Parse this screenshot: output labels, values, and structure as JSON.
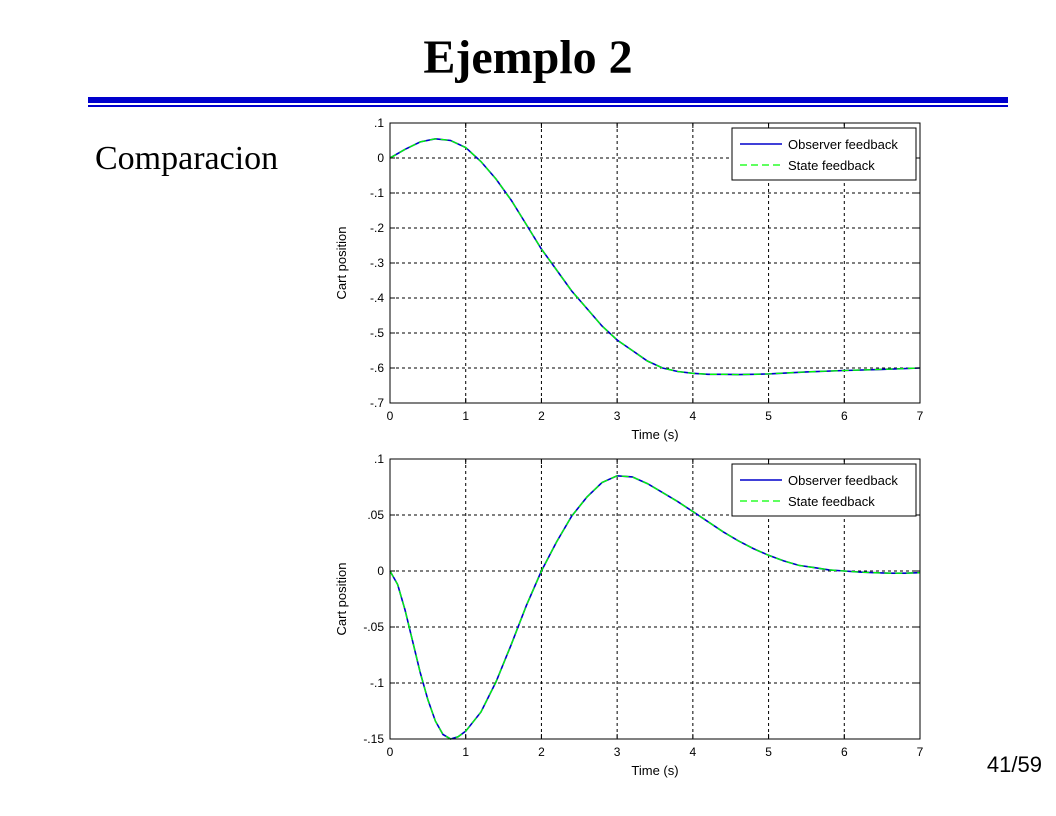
{
  "slide": {
    "title": "Ejemplo 2",
    "subtitle": "Comparacion",
    "page_current": "41",
    "page_sep": "/",
    "page_total": "59",
    "rule_color": "#0000cc"
  },
  "chart_data": [
    {
      "type": "line",
      "xlabel": "Time (s)",
      "ylabel": "Cart position",
      "xlim": [
        0,
        7
      ],
      "ylim": [
        -0.7,
        0.1
      ],
      "xticks": [
        0,
        1,
        2,
        3,
        4,
        5,
        6,
        7
      ],
      "yticks": [
        0.1,
        0,
        -0.1,
        -0.2,
        -0.3,
        -0.4,
        -0.5,
        -0.6,
        -0.7
      ],
      "grid": true,
      "legend_position": "top-right",
      "series": [
        {
          "name": "Observer feedback",
          "color": "#0000cc",
          "style": "solid",
          "x": [
            0,
            0.2,
            0.4,
            0.6,
            0.8,
            1.0,
            1.2,
            1.4,
            1.6,
            1.8,
            2.0,
            2.2,
            2.4,
            2.6,
            2.8,
            3.0,
            3.2,
            3.4,
            3.6,
            3.8,
            4.0,
            4.2,
            4.4,
            4.6,
            4.8,
            5.0,
            5.5,
            6.0,
            6.5,
            7.0
          ],
          "y": [
            0,
            0.025,
            0.046,
            0.055,
            0.05,
            0.03,
            -0.01,
            -0.06,
            -0.12,
            -0.19,
            -0.26,
            -0.32,
            -0.38,
            -0.43,
            -0.48,
            -0.52,
            -0.55,
            -0.58,
            -0.6,
            -0.61,
            -0.615,
            -0.618,
            -0.618,
            -0.619,
            -0.618,
            -0.617,
            -0.611,
            -0.607,
            -0.604,
            -0.6
          ]
        },
        {
          "name": "State feedback",
          "color": "#00ff00",
          "style": "dashed",
          "x": [
            0,
            0.2,
            0.4,
            0.6,
            0.8,
            1.0,
            1.2,
            1.4,
            1.6,
            1.8,
            2.0,
            2.2,
            2.4,
            2.6,
            2.8,
            3.0,
            3.2,
            3.4,
            3.6,
            3.8,
            4.0,
            4.2,
            4.4,
            4.6,
            4.8,
            5.0,
            5.5,
            6.0,
            6.5,
            7.0
          ],
          "y": [
            0,
            0.025,
            0.046,
            0.055,
            0.05,
            0.03,
            -0.01,
            -0.06,
            -0.12,
            -0.19,
            -0.26,
            -0.32,
            -0.38,
            -0.43,
            -0.48,
            -0.52,
            -0.55,
            -0.58,
            -0.6,
            -0.61,
            -0.615,
            -0.618,
            -0.618,
            -0.619,
            -0.618,
            -0.617,
            -0.611,
            -0.607,
            -0.604,
            -0.6
          ]
        }
      ]
    },
    {
      "type": "line",
      "xlabel": "Time (s)",
      "ylabel": "Cart position",
      "xlim": [
        0,
        7
      ],
      "ylim": [
        -0.15,
        0.1
      ],
      "xticks": [
        0,
        1,
        2,
        3,
        4,
        5,
        6,
        7
      ],
      "yticks": [
        0.1,
        0.05,
        0,
        -0.05,
        -0.1,
        -0.15
      ],
      "grid": true,
      "legend_position": "top-right",
      "series": [
        {
          "name": "Observer feedback",
          "color": "#0000cc",
          "style": "solid",
          "x": [
            0,
            0.1,
            0.2,
            0.3,
            0.4,
            0.5,
            0.6,
            0.7,
            0.8,
            0.9,
            1.0,
            1.2,
            1.4,
            1.6,
            1.8,
            2.0,
            2.2,
            2.4,
            2.6,
            2.8,
            3.0,
            3.2,
            3.4,
            3.6,
            3.8,
            4.0,
            4.2,
            4.4,
            4.6,
            4.8,
            5.0,
            5.2,
            5.4,
            5.6,
            5.8,
            6.0,
            6.2,
            6.4,
            6.6,
            6.8,
            7.0
          ],
          "y": [
            0,
            -0.012,
            -0.035,
            -0.063,
            -0.091,
            -0.115,
            -0.134,
            -0.146,
            -0.15,
            -0.148,
            -0.143,
            -0.126,
            -0.099,
            -0.066,
            -0.031,
            0.0,
            0.026,
            0.049,
            0.066,
            0.079,
            0.085,
            0.084,
            0.078,
            0.07,
            0.062,
            0.053,
            0.044,
            0.035,
            0.027,
            0.02,
            0.014,
            0.009,
            0.005,
            0.003,
            0.001,
            0.0,
            -0.001,
            -0.0015,
            -0.002,
            -0.002,
            -0.0015
          ]
        },
        {
          "name": "State feedback",
          "color": "#00ff00",
          "style": "dashed",
          "x": [
            0,
            0.1,
            0.2,
            0.3,
            0.4,
            0.5,
            0.6,
            0.7,
            0.8,
            0.9,
            1.0,
            1.2,
            1.4,
            1.6,
            1.8,
            2.0,
            2.2,
            2.4,
            2.6,
            2.8,
            3.0,
            3.2,
            3.4,
            3.6,
            3.8,
            4.0,
            4.2,
            4.4,
            4.6,
            4.8,
            5.0,
            5.2,
            5.4,
            5.6,
            5.8,
            6.0,
            6.2,
            6.4,
            6.6,
            6.8,
            7.0
          ],
          "y": [
            0,
            -0.012,
            -0.035,
            -0.063,
            -0.091,
            -0.115,
            -0.134,
            -0.146,
            -0.15,
            -0.148,
            -0.143,
            -0.126,
            -0.099,
            -0.066,
            -0.031,
            0.0,
            0.026,
            0.049,
            0.066,
            0.079,
            0.085,
            0.084,
            0.078,
            0.07,
            0.062,
            0.053,
            0.044,
            0.035,
            0.027,
            0.02,
            0.014,
            0.009,
            0.005,
            0.003,
            0.001,
            0.0,
            -0.001,
            -0.0015,
            -0.002,
            -0.002,
            -0.0015
          ]
        }
      ]
    }
  ]
}
